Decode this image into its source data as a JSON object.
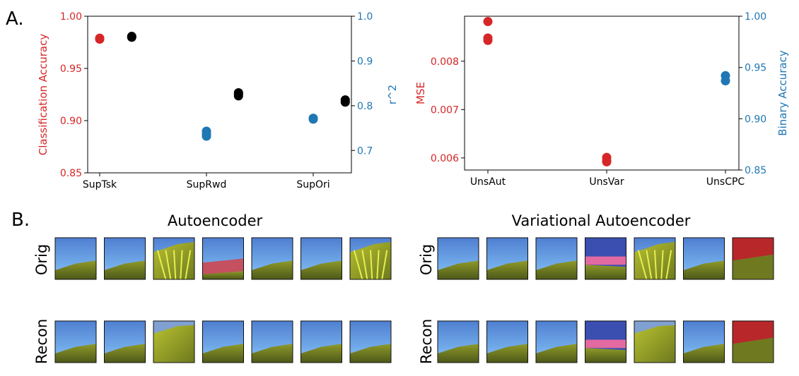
{
  "panel_labels": {
    "a": "A.",
    "b": "B."
  },
  "colors": {
    "red": "#d62728",
    "blue": "#1f77b4",
    "black": "#000000"
  },
  "chart_data": [
    {
      "type": "scatter",
      "categories": [
        "SupTsk",
        "SupRwd",
        "SupOri"
      ],
      "ylabel_left": "Classification Accuracy",
      "ylabel_right": "r^2",
      "ylim_left": [
        0.85,
        1.0
      ],
      "ylim_right": [
        0.65,
        1.0
      ],
      "yticks_left": [
        "0.85",
        "0.90",
        "0.95",
        "1.00"
      ],
      "yticks_right": [
        "0.7",
        "0.8",
        "0.9",
        "1.0"
      ],
      "series": [
        {
          "name": "classification accuracy",
          "axis": "left",
          "color": "red",
          "points": [
            [
              0,
              0.978
            ],
            [
              0,
              0.979
            ]
          ]
        },
        {
          "name": "r^2",
          "axis": "right",
          "color": "blue",
          "points": [
            [
              1,
              0.743
            ],
            [
              1,
              0.737
            ],
            [
              1,
              0.732
            ],
            [
              2,
              0.772
            ],
            [
              2,
              0.77
            ]
          ]
        },
        {
          "name": "r^2 (task)",
          "axis": "right",
          "color": "black",
          "points": [
            [
              0.3,
              0.955
            ],
            [
              0.3,
              0.953
            ],
            [
              1.3,
              0.829
            ],
            [
              1.3,
              0.822
            ],
            [
              1.3,
              0.826
            ],
            [
              2.3,
              0.813
            ],
            [
              2.3,
              0.808
            ]
          ]
        }
      ]
    },
    {
      "type": "scatter",
      "categories": [
        "UnsAut",
        "UnsVar",
        "UnsCPC"
      ],
      "ylabel_left": "MSE",
      "ylabel_right": "Binary Accuracy",
      "ylim_left": [
        0.00575,
        0.00893
      ],
      "ylim_right": [
        0.85,
        1.0
      ],
      "yticks_left": [
        "0.006",
        "0.007",
        "0.008"
      ],
      "yticks_right": [
        "0.85",
        "0.90",
        "0.95",
        "1.00"
      ],
      "series": [
        {
          "name": "mse",
          "axis": "left",
          "color": "red",
          "points": [
            [
              0,
              0.00882
            ],
            [
              0,
              0.00848
            ],
            [
              0,
              0.00843
            ],
            [
              1,
              0.00601
            ],
            [
              1,
              0.00595
            ],
            [
              1,
              0.00592
            ]
          ]
        },
        {
          "name": "binary accuracy",
          "axis": "right",
          "color": "blue",
          "points": [
            [
              2,
              0.942
            ],
            [
              2,
              0.937
            ]
          ]
        }
      ]
    }
  ],
  "panel_b": {
    "groups": [
      {
        "title": "Autoencoder",
        "row_labels": {
          "orig": "Orig",
          "recon": "Recon"
        },
        "orig": [
          "sky",
          "sky",
          "grass",
          "red",
          "sky",
          "sky",
          "grass"
        ],
        "recon": [
          "sky",
          "sky",
          "blurgrass",
          "sky",
          "sky",
          "sky",
          "sky"
        ]
      },
      {
        "title": "Variational Autoencoder",
        "row_labels": {
          "orig": "Orig",
          "recon": "Recon"
        },
        "orig": [
          "sky",
          "sky",
          "sky",
          "pink",
          "grass",
          "sky",
          "redwall"
        ],
        "recon": [
          "sky",
          "sky",
          "sky",
          "pink",
          "blurgrass",
          "sky",
          "redwall"
        ]
      }
    ]
  }
}
